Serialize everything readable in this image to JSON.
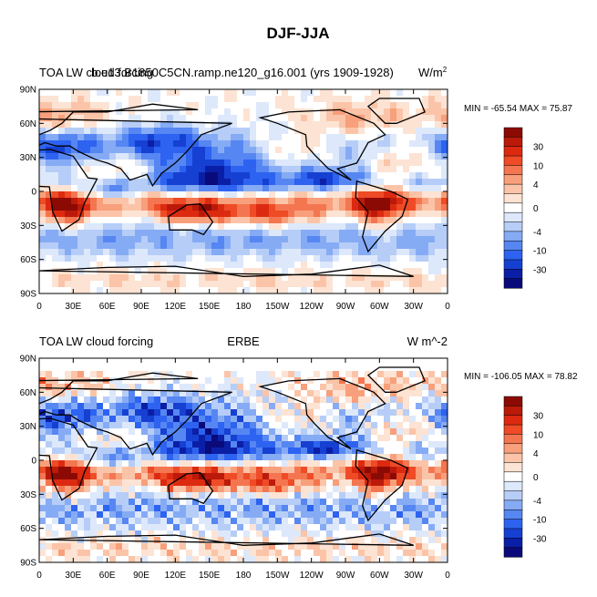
{
  "figure": {
    "title": "DJF-JJA"
  },
  "colorbar_levels": [
    "30",
    "10",
    "4",
    "0",
    "-4",
    "-10",
    "-30"
  ],
  "colorbar_colors": [
    "#0a0a7a",
    "#0b1fa6",
    "#1640d2",
    "#2d63f0",
    "#5686f2",
    "#86abf5",
    "#b6cdf7",
    "#dde8fb",
    "#ffffff",
    "#fde3d3",
    "#fbc4a8",
    "#f89f7b",
    "#f47650",
    "#ee4b26",
    "#dc2a10",
    "#bb1a0a",
    "#8c0a04"
  ],
  "continents_color": "#000000",
  "chart_data": [
    {
      "type": "heatmap",
      "title_left": "TOA LW cloud forcing",
      "title_center": "b.e13.B1850C5CN.ramp.ne120_g16.001 (yrs 1909-1928)",
      "units": "W/m",
      "units_superscript": "2",
      "min_max_text": "MIN = -65.54 MAX =  75.87",
      "min": -65.54,
      "max": 75.87,
      "x_tick_labels": [
        "0",
        "30E",
        "60E",
        "90E",
        "120E",
        "150E",
        "180",
        "150W",
        "120W",
        "90W",
        "60W",
        "30W",
        "0"
      ],
      "y_tick_labels": [
        "90N",
        "60N",
        "30N",
        "0",
        "30S",
        "60S",
        "90S"
      ],
      "xlim": [
        0,
        360
      ],
      "ylim": [
        -90,
        90
      ],
      "grid": false
    },
    {
      "type": "heatmap",
      "title_left": "TOA LW cloud forcing",
      "title_center": "ERBE",
      "units": "W m^-2",
      "min_max_text": "MIN = -106.05 MAX =  78.82",
      "min": -106.05,
      "max": 78.82,
      "x_tick_labels": [
        "0",
        "30E",
        "60E",
        "90E",
        "120E",
        "150E",
        "180",
        "150W",
        "120W",
        "90W",
        "60W",
        "30W",
        "0"
      ],
      "y_tick_labels": [
        "90N",
        "60N",
        "30N",
        "0",
        "30S",
        "60S",
        "90S"
      ],
      "xlim": [
        0,
        360
      ],
      "ylim": [
        -90,
        90
      ],
      "grid": false,
      "missing_data_color": "#ffffff"
    }
  ]
}
